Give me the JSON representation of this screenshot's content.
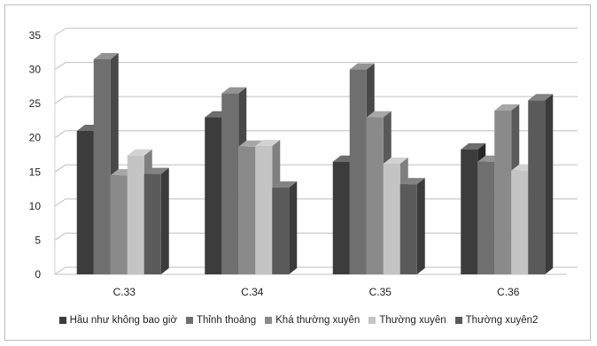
{
  "chart_data": {
    "type": "bar",
    "title": "",
    "xlabel": "",
    "ylabel": "",
    "ylim": [
      0,
      35
    ],
    "yticks": [
      0,
      5,
      10,
      15,
      20,
      25,
      30,
      35
    ],
    "grid": true,
    "legend_position": "bottom",
    "style": "3d-clustered-column",
    "categories": [
      "C.33",
      "C.34",
      "C.35",
      "C.36"
    ],
    "series": [
      {
        "name": "Hầu như không bao giờ",
        "color": "#3c3c3c",
        "values": [
          21,
          23,
          16.5,
          18.3
        ]
      },
      {
        "name": "Thỉnh thoảng",
        "color": "#6f6f6f",
        "values": [
          31.5,
          26.5,
          30,
          16.5
        ]
      },
      {
        "name": "Khá thường xuyên",
        "color": "#8a8a8a",
        "values": [
          14.5,
          18.7,
          23,
          24
        ]
      },
      {
        "name": "Thường xuyên",
        "color": "#c4c4c4",
        "values": [
          17.4,
          18.8,
          16.2,
          15.2
        ]
      },
      {
        "name": "Thường xuyên2",
        "color": "#5a5a5a",
        "values": [
          14.7,
          12.7,
          13.2,
          25.5
        ]
      }
    ]
  }
}
